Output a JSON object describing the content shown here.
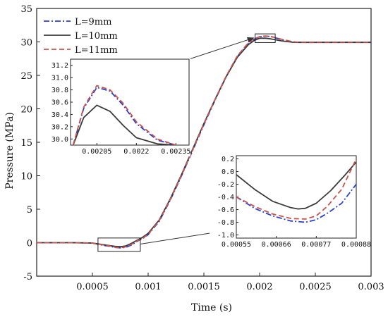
{
  "chart_data": {
    "type": "line",
    "xlabel": "Time (s)",
    "ylabel": "Pressure (MPa)",
    "xlim": [
      0,
      0.003
    ],
    "ylim": [
      -5,
      35
    ],
    "x_ticks": [
      0.0005,
      0.001,
      0.0015,
      0.002,
      0.0025,
      0.003
    ],
    "x_tick_labels": [
      "0.0005",
      "0.001",
      "0.0015",
      "0.002",
      "0.0025",
      "0.003"
    ],
    "y_ticks": [
      -5,
      0,
      5,
      10,
      15,
      20,
      25,
      30,
      35
    ],
    "y_tick_labels": [
      "-5",
      "0",
      "5",
      "10",
      "15",
      "20",
      "25",
      "30",
      "35"
    ],
    "legend_position": "top-left",
    "series": [
      {
        "name": "L=9mm",
        "color": "#2b3fd1",
        "dash": "dash-dot",
        "x": [
          0,
          0.0003,
          0.0005,
          0.0006,
          0.00066,
          0.0007,
          0.00075,
          0.0008,
          0.00085,
          0.0009,
          0.00095,
          0.001,
          0.0011,
          0.0012,
          0.0013,
          0.0014,
          0.0015,
          0.0016,
          0.0017,
          0.0018,
          0.0019,
          0.00195,
          0.002,
          0.00205,
          0.0021,
          0.0022,
          0.0023,
          0.00235,
          0.0025,
          0.0028,
          0.003
        ],
        "y": [
          0,
          0,
          -0.05,
          -0.4,
          -0.55,
          -0.7,
          -0.78,
          -0.7,
          -0.35,
          0.2,
          0.6,
          1.2,
          3.2,
          6.4,
          10.0,
          13.8,
          17.6,
          21.3,
          24.8,
          27.8,
          29.8,
          30.4,
          30.75,
          30.86,
          30.8,
          30.35,
          30.0,
          29.95,
          29.95,
          29.95,
          29.95
        ]
      },
      {
        "name": "L=10mm",
        "color": "#3b3b3b",
        "dash": "solid",
        "x": [
          0,
          0.0003,
          0.0005,
          0.0006,
          0.00066,
          0.0007,
          0.00075,
          0.0008,
          0.00085,
          0.0009,
          0.00095,
          0.001,
          0.0011,
          0.0012,
          0.0013,
          0.0014,
          0.0015,
          0.0016,
          0.0017,
          0.0018,
          0.0019,
          0.00195,
          0.002,
          0.00205,
          0.0021,
          0.0022,
          0.0023,
          0.00235,
          0.0025,
          0.0028,
          0.003
        ],
        "y": [
          0,
          0,
          -0.05,
          -0.3,
          -0.45,
          -0.55,
          -0.6,
          -0.48,
          -0.1,
          0.35,
          0.8,
          1.4,
          3.4,
          6.6,
          10.2,
          14.0,
          17.8,
          21.4,
          24.8,
          27.7,
          29.6,
          30.2,
          30.55,
          30.56,
          30.45,
          30.15,
          29.95,
          29.93,
          29.93,
          29.93,
          29.93
        ]
      },
      {
        "name": "L=11mm",
        "color": "#c8544b",
        "dash": "dashed",
        "x": [
          0,
          0.0003,
          0.0005,
          0.0006,
          0.00066,
          0.0007,
          0.00075,
          0.0008,
          0.00085,
          0.0009,
          0.00095,
          0.001,
          0.0011,
          0.0012,
          0.0013,
          0.0014,
          0.0015,
          0.0016,
          0.0017,
          0.0018,
          0.0019,
          0.00195,
          0.002,
          0.00205,
          0.0021,
          0.0022,
          0.0023,
          0.00235,
          0.0025,
          0.0028,
          0.003
        ],
        "y": [
          0,
          0,
          -0.05,
          -0.35,
          -0.5,
          -0.67,
          -0.74,
          -0.62,
          -0.25,
          0.25,
          0.65,
          1.25,
          3.3,
          6.5,
          10.1,
          13.9,
          17.7,
          21.4,
          24.9,
          27.9,
          29.9,
          30.45,
          30.8,
          30.88,
          30.82,
          30.38,
          30.02,
          29.96,
          29.96,
          29.96,
          29.96
        ]
      }
    ],
    "insets": [
      {
        "region": "peak",
        "xlim": [
          0.00195,
          0.0024
        ],
        "ylim": [
          29.9,
          31.3
        ],
        "x_ticks": [
          0.00205,
          0.0022,
          0.00235
        ],
        "x_tick_labels": [
          "0.00205",
          "0.0022",
          "0.00235"
        ],
        "y_ticks": [
          30.0,
          30.2,
          30.4,
          30.6,
          30.8,
          31.0,
          31.2
        ],
        "y_tick_labels": [
          "30.0",
          "30.2",
          "30.4",
          "30.6",
          "30.8",
          "31.0",
          "31.2"
        ],
        "series": [
          {
            "name": "L=9mm",
            "x": [
              0.00196,
              0.002,
              0.00205,
              0.0021,
              0.00215,
              0.0022,
              0.00228,
              0.00235
            ],
            "y": [
              29.9,
              30.5,
              30.84,
              30.78,
              30.55,
              30.25,
              29.98,
              29.9
            ]
          },
          {
            "name": "L=10mm",
            "x": [
              0.00196,
              0.002,
              0.00205,
              0.0021,
              0.00215,
              0.0022,
              0.00228,
              0.00235
            ],
            "y": [
              29.9,
              30.35,
              30.55,
              30.45,
              30.22,
              30.02,
              29.92,
              29.9
            ]
          },
          {
            "name": "L=11mm",
            "x": [
              0.00196,
              0.002,
              0.00205,
              0.0021,
              0.00215,
              0.0022,
              0.00228,
              0.00235
            ],
            "y": [
              29.9,
              30.52,
              30.87,
              30.8,
              30.58,
              30.28,
              30.0,
              29.9
            ]
          }
        ]
      },
      {
        "region": "trough",
        "xlim": [
          0.00055,
          0.00088
        ],
        "ylim": [
          -1.05,
          0.25
        ],
        "x_ticks": [
          0.00055,
          0.00066,
          0.00077,
          0.00088
        ],
        "x_tick_labels": [
          "0.00055",
          "0.00066",
          "0.00077",
          "0.00088"
        ],
        "y_ticks": [
          -1.0,
          -0.8,
          -0.6,
          -0.4,
          -0.2,
          0.0,
          0.2
        ],
        "y_tick_labels": [
          "-1.0",
          "-0.8",
          "-0.6",
          "-0.4",
          "-0.2",
          "0.0",
          "0.2"
        ],
        "series": [
          {
            "name": "L=9mm",
            "x": [
              0.00055,
              0.0006,
              0.00065,
              0.0007,
              0.00074,
              0.00077,
              0.0008,
              0.00084,
              0.00088
            ],
            "y": [
              -0.4,
              -0.58,
              -0.7,
              -0.78,
              -0.8,
              -0.76,
              -0.66,
              -0.5,
              -0.2
            ]
          },
          {
            "name": "L=10mm",
            "x": [
              0.00055,
              0.0006,
              0.00065,
              0.0007,
              0.00072,
              0.00074,
              0.00077,
              0.00081,
              0.00085,
              0.00088
            ],
            "y": [
              -0.05,
              -0.28,
              -0.47,
              -0.57,
              -0.59,
              -0.58,
              -0.5,
              -0.3,
              -0.05,
              0.15
            ]
          },
          {
            "name": "L=11mm",
            "x": [
              0.00055,
              0.0006,
              0.00065,
              0.0007,
              0.00074,
              0.00077,
              0.0008,
              0.00084,
              0.00088
            ],
            "y": [
              -0.4,
              -0.55,
              -0.67,
              -0.74,
              -0.75,
              -0.7,
              -0.55,
              -0.28,
              0.2
            ]
          }
        ]
      }
    ]
  }
}
